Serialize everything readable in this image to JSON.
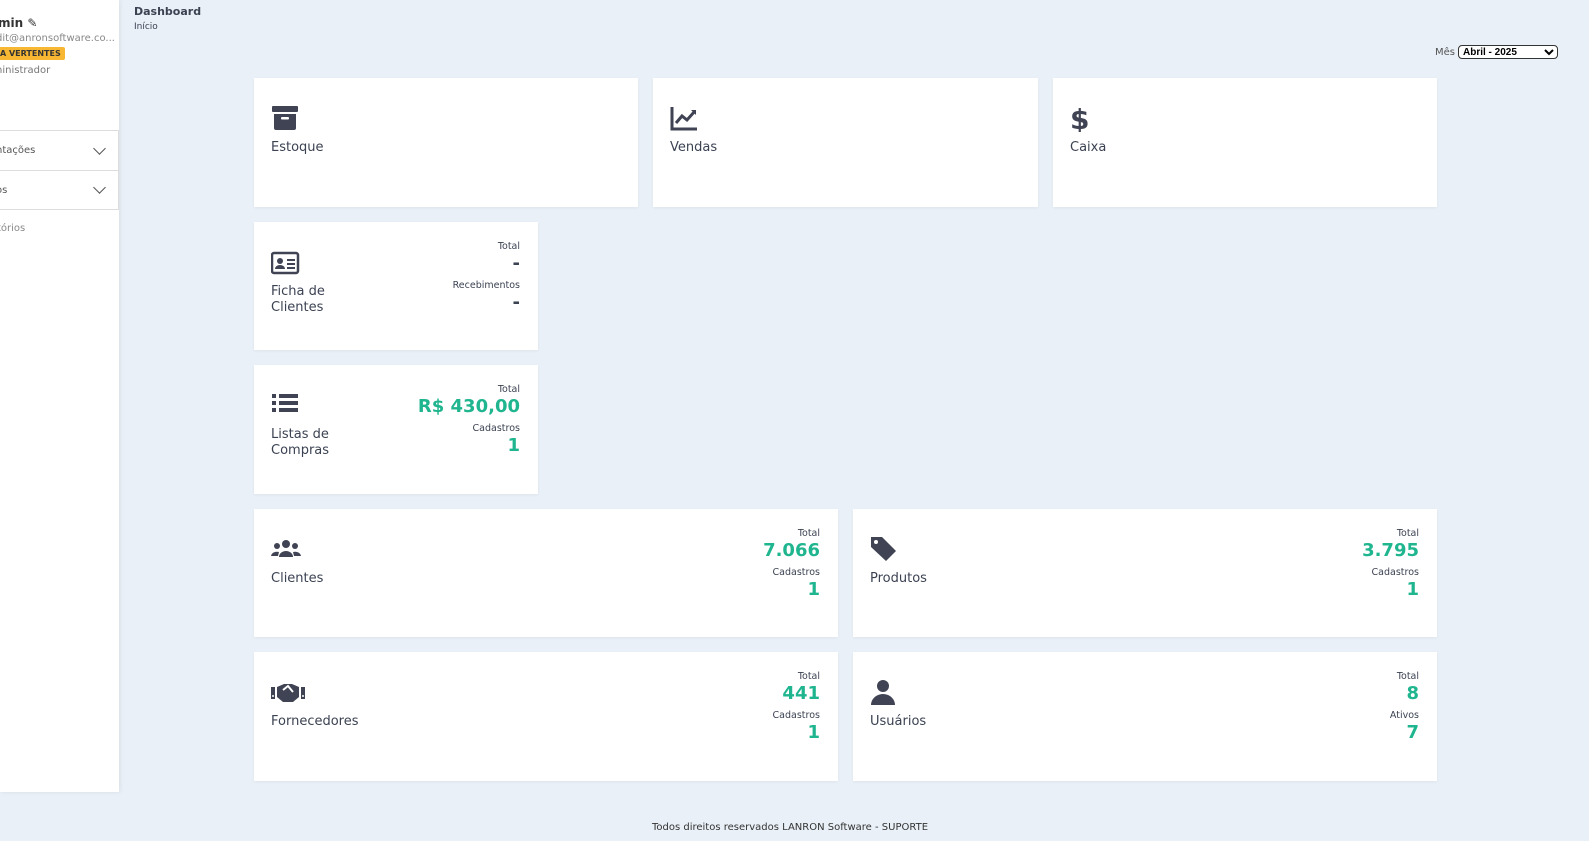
{
  "sidebar": {
    "user_name": "min",
    "email": "dit@anronsoftware.co...",
    "company_badge": "A VERTENTES",
    "role": "ninistrador",
    "menu": [
      {
        "label": "ntações"
      },
      {
        "label": "os"
      }
    ],
    "plain_item": "tórios"
  },
  "header": {
    "title": "Dashboard",
    "breadcrumb": "Início",
    "month_label": "Mês",
    "month_value": "Abril - 2025"
  },
  "cards": {
    "estoque": {
      "title": "Estoque",
      "icon": "archive-icon"
    },
    "vendas": {
      "title": "Vendas",
      "icon": "chart-line-icon"
    },
    "caixa": {
      "title": "Caixa",
      "icon": "dollar-icon"
    },
    "ficha": {
      "title": "Ficha de Clientes",
      "icon": "id-card-icon",
      "l1": "Total",
      "v1": "-",
      "l2": "Recebimentos",
      "v2": "-"
    },
    "listas": {
      "title": "Listas de Compras",
      "icon": "list-icon",
      "l1": "Total",
      "v1": "R$ 430,00",
      "l2": "Cadastros",
      "v2": "1"
    },
    "clientes": {
      "title": "Clientes",
      "icon": "users-icon",
      "l1": "Total",
      "v1": "7.066",
      "l2": "Cadastros",
      "v2": "1"
    },
    "produtos": {
      "title": "Produtos",
      "icon": "tag-icon",
      "l1": "Total",
      "v1": "3.795",
      "l2": "Cadastros",
      "v2": "1"
    },
    "fornecedores": {
      "title": "Fornecedores",
      "icon": "handshake-icon",
      "l1": "Total",
      "v1": "441",
      "l2": "Cadastros",
      "v2": "1"
    },
    "usuarios": {
      "title": "Usuários",
      "icon": "user-icon",
      "l1": "Total",
      "v1": "8",
      "l2": "Ativos",
      "v2": "7"
    }
  },
  "footer": {
    "text": "Todos direitos reservados LANRON Software - SUPORTE"
  },
  "colors": {
    "accent": "#1fb58f",
    "badge": "#f7b733",
    "background": "#e9f0f7"
  }
}
